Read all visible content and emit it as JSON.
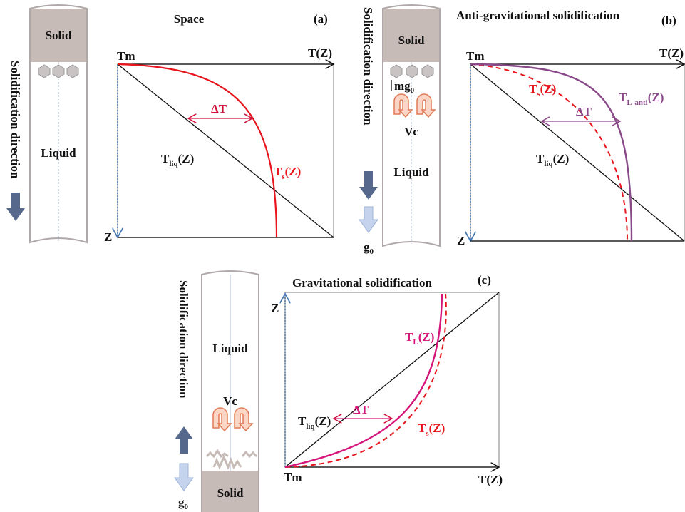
{
  "panel_a": {
    "tube": {
      "top": "Solid",
      "middle": "Liquid"
    },
    "direction": "Solidification direction",
    "title": "Space",
    "tag": "(a)",
    "origin": "Tm",
    "x_axis": "T(Z)",
    "z_axis": "Z",
    "delta": "ΔT",
    "liquidus": {
      "base": "T",
      "sub": "liq",
      "rest": "(Z)"
    },
    "solidus": {
      "base": "T",
      "sub": "s",
      "rest": "(Z)"
    }
  },
  "panel_b": {
    "tube": {
      "top": "Solid",
      "middle": "Liquid"
    },
    "direction": "Solidification direction",
    "force": {
      "base": "mg",
      "sub": "0"
    },
    "flow": "Vc",
    "gravity": {
      "base": "g",
      "sub": "0"
    },
    "title": "Anti-gravitational solidification",
    "tag": "(b)",
    "origin": "Tm",
    "x_axis": "T(Z)",
    "z_axis": "Z",
    "delta": "ΔT",
    "solidus": {
      "base": "T",
      "sub": "s",
      "rest": "(Z)"
    },
    "curve_l": {
      "base": "T",
      "sub": "L-anti",
      "rest": "(Z)"
    },
    "liquidus": {
      "base": "T",
      "sub": "liq",
      "rest": "(Z)"
    }
  },
  "panel_c": {
    "tube": {
      "top": "Liquid",
      "bottom": "Solid"
    },
    "direction": "Solidification direction",
    "flow": "Vc",
    "gravity": {
      "base": "g",
      "sub": "0"
    },
    "title": "Gravitational solidification",
    "tag": "(c)",
    "origin": "Tm",
    "x_axis": "T(Z)",
    "z_axis": "Z",
    "delta": "ΔT",
    "curve_l": {
      "base": "T",
      "sub": "L",
      "rest": "(Z)"
    },
    "liquidus": {
      "base": "T",
      "sub": "liq",
      "rest": "(Z)"
    },
    "solidus": {
      "base": "T",
      "sub": "s",
      "rest": "(Z)"
    }
  }
}
